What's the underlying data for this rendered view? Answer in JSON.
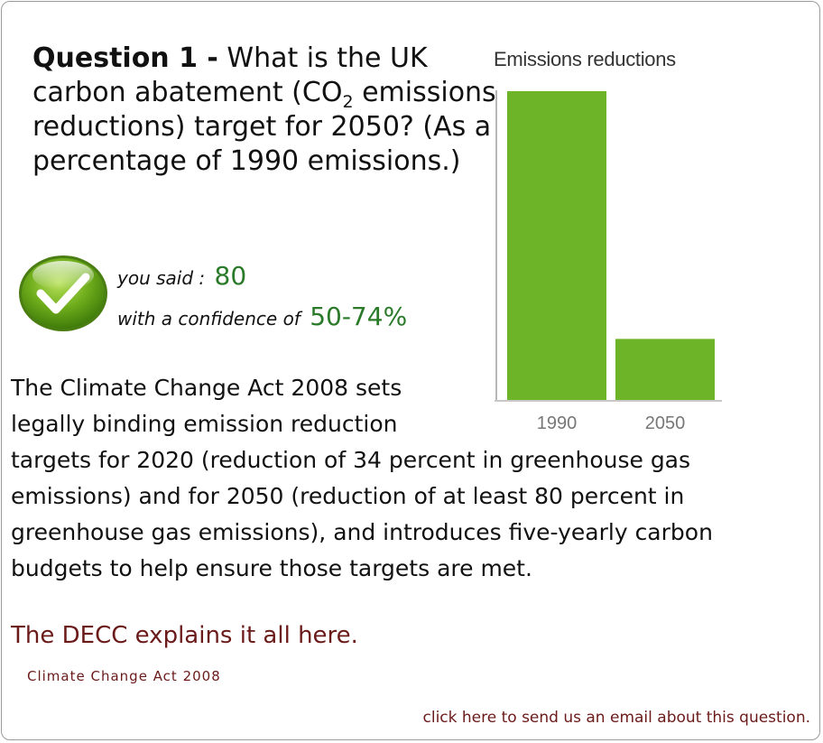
{
  "question": {
    "label": "Question 1 -",
    "text_before_sub": "What is the UK carbon abatement (CO",
    "sub": "2",
    "text_after_sub": " emissions reductions) target for 2050? (As a percentage of 1990 emissions.)"
  },
  "answer": {
    "you_said_label": "you said :",
    "you_said_value": "80",
    "confidence_label": "with a confidence of",
    "confidence_value": "50-74%"
  },
  "explanation": "The Climate Change Act 2008 sets legally binding emission reduction targets for 2020 (reduction of 34 percent in greenhouse gas emissions) and for 2050 (reduction of at least 80 percent in greenhouse gas emissions), and introduces five-yearly carbon budgets to help ensure those targets are met.",
  "links": {
    "decc": "The DECC explains it all here.",
    "act": "Climate Change Act 2008",
    "email": "click here to send us an email about this question."
  },
  "chart_data": {
    "type": "bar",
    "title": "Emissions reductions",
    "categories": [
      "1990",
      "2050"
    ],
    "values": [
      100,
      20
    ],
    "ylim": [
      0,
      100
    ],
    "grid": false,
    "bar_color": "#6db428"
  }
}
